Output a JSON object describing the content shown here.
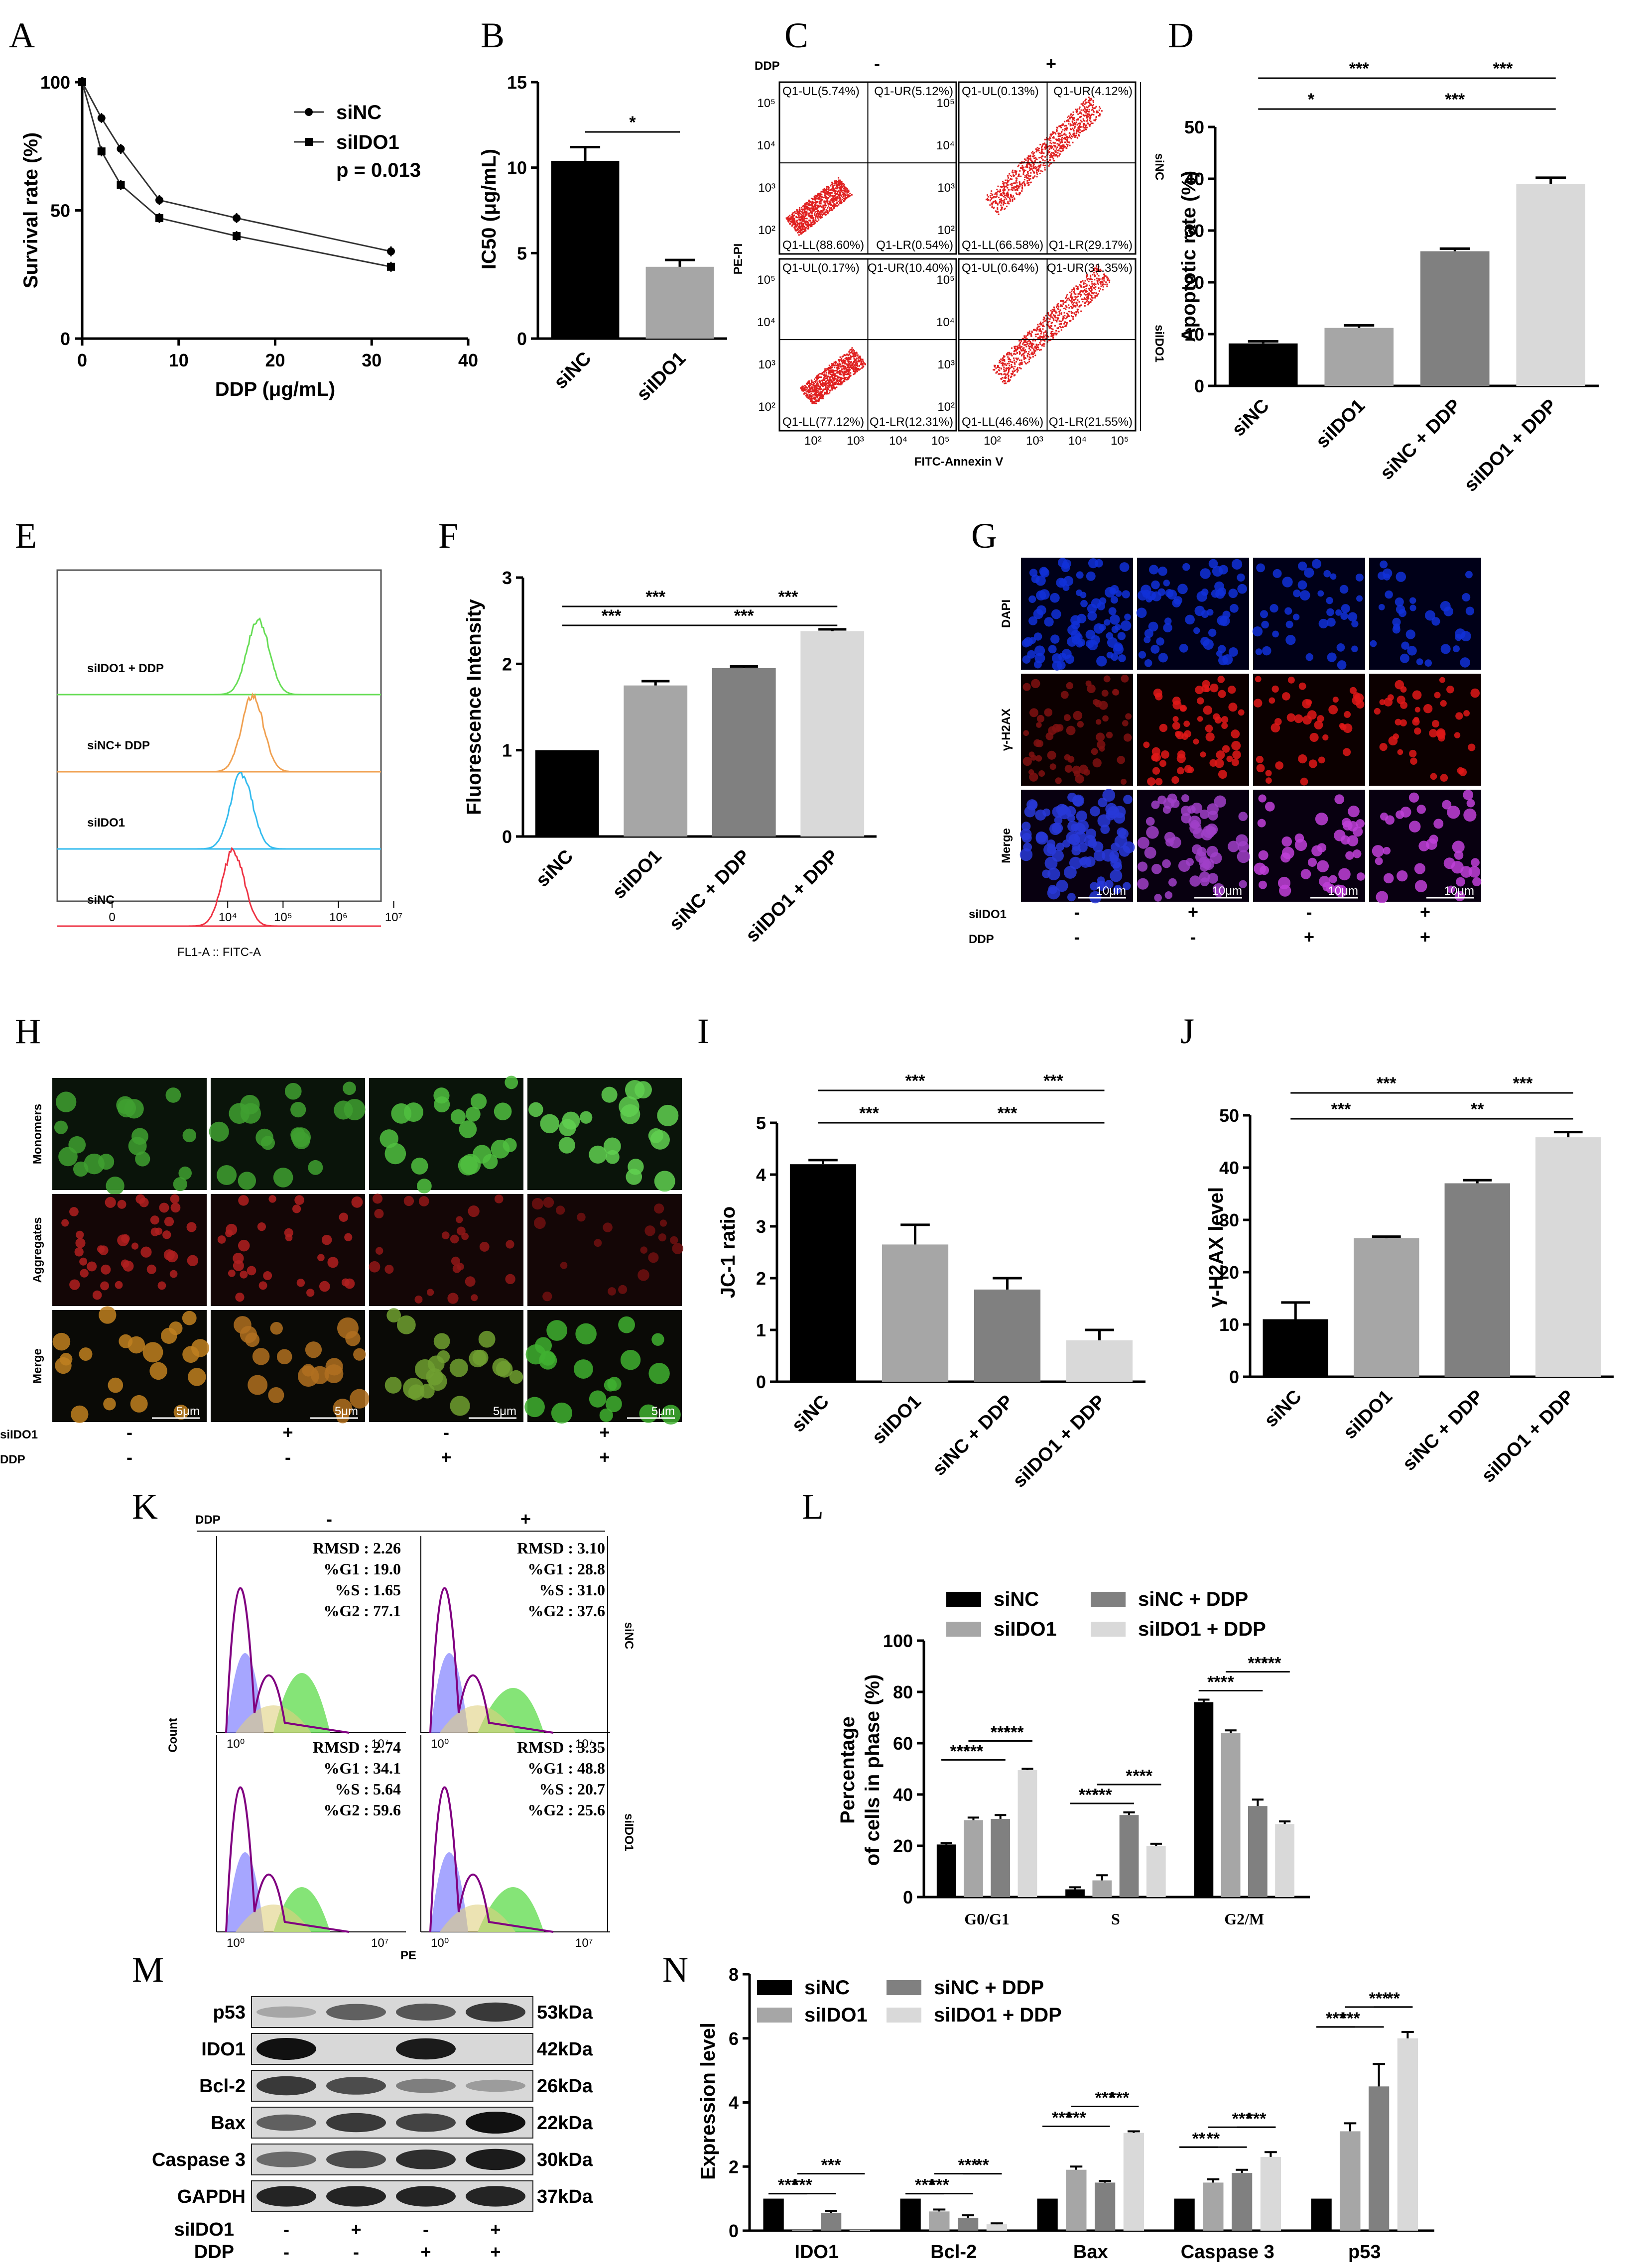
{
  "panel_letters": [
    "A",
    "B",
    "C",
    "D",
    "E",
    "F",
    "G",
    "H",
    "I",
    "J",
    "K",
    "L",
    "M",
    "N"
  ],
  "colors": {
    "black": "#000000",
    "darkgray": "#808080",
    "midgray": "#a6a6a6",
    "lightgray": "#d9d9d9",
    "flow_red": "#e02020",
    "hist_green": "#66dd55",
    "hist_orange": "#f0a050",
    "hist_blue": "#33bbee",
    "hist_red": "#ee3344",
    "dapi": "#1030d8",
    "h2ax": "#e01818",
    "merge": "#c040d8",
    "jc_green": "#40a030",
    "jc_red": "#b02020"
  },
  "chart_data": [
    {
      "panel": "A",
      "type": "line",
      "xlabel": "DDP (μg/mL)",
      "ylabel": "Survival rate (%)",
      "xlim": [
        0,
        40
      ],
      "ylim": [
        0,
        100
      ],
      "xticks": [
        "0",
        "10",
        "20",
        "30",
        "40"
      ],
      "yticks": [
        "0",
        "50",
        "100"
      ],
      "annotation": "p = 0.013",
      "x": [
        0,
        2,
        4,
        8,
        16,
        32
      ],
      "series": [
        {
          "name": "siNC",
          "marker": "circle",
          "values": [
            100,
            86,
            74,
            54,
            47,
            34
          ]
        },
        {
          "name": "siIDO1",
          "marker": "square",
          "values": [
            100,
            73,
            60,
            47,
            40,
            28
          ]
        }
      ]
    },
    {
      "panel": "B",
      "type": "bar",
      "ylabel": "IC50 (μg/mL)",
      "ylim": [
        0,
        15
      ],
      "yticks": [
        "0",
        "5",
        "10",
        "15"
      ],
      "categories": [
        "siNC",
        "siIDO1"
      ],
      "values": [
        10.4,
        4.2
      ],
      "errors": [
        0.8,
        0.4
      ],
      "significance": [
        {
          "from": 0,
          "to": 1,
          "label": "*"
        }
      ]
    },
    {
      "panel": "C",
      "type": "scatter",
      "top_label": "DDP",
      "columns": [
        "-",
        "+"
      ],
      "rows": [
        "siNC",
        "siIDO1"
      ],
      "xlabel": "FITC-Annexin V",
      "ylabel": "PE-PI",
      "xticks": [
        "10²",
        "10³",
        "10⁴",
        "10⁵"
      ],
      "yticks": [
        "10²",
        "10³",
        "10⁴",
        "10⁵"
      ],
      "quadrants": [
        {
          "UL": "Q1-UL(5.74%)",
          "UR": "Q1-UR(5.12%)",
          "LL": "Q1-LL(88.60%)",
          "LR": "Q1-LR(0.54%)"
        },
        {
          "UL": "Q1-UL(0.13%)",
          "UR": "Q1-UR(4.12%)",
          "LL": "Q1-LL(66.58%)",
          "LR": "Q1-LR(29.17%)"
        },
        {
          "UL": "Q1-UL(0.17%)",
          "UR": "Q1-UR(10.40%)",
          "LL": "Q1-LL(77.12%)",
          "LR": "Q1-LR(12.31%)"
        },
        {
          "UL": "Q1-UL(0.64%)",
          "UR": "Q1-UR(31.35%)",
          "LL": "Q1-LL(46.46%)",
          "LR": "Q1-LR(21.55%)"
        }
      ]
    },
    {
      "panel": "D",
      "type": "bar",
      "ylabel": "Apoptotic rate (%)",
      "ylim": [
        0,
        50
      ],
      "yticks": [
        "0",
        "10",
        "20",
        "30",
        "40",
        "50"
      ],
      "categories": [
        "siNC",
        "siIDO1",
        "siNC + DDP",
        "siIDO1 + DDP"
      ],
      "values": [
        8.2,
        11.2,
        26.0,
        39.0
      ],
      "errors": [
        0.4,
        0.5,
        0.5,
        1.2
      ],
      "significance": [
        {
          "from": 0,
          "to": 2,
          "label": "***",
          "level": 2
        },
        {
          "from": 2,
          "to": 3,
          "label": "***",
          "level": 2
        },
        {
          "from": 0,
          "to": 1,
          "label": "*",
          "level": 1
        },
        {
          "from": 1,
          "to": 3,
          "label": "***",
          "level": 1
        }
      ]
    },
    {
      "panel": "E",
      "type": "area",
      "xlabel": "FL1-A :: FITC-A",
      "xticks": [
        "0",
        "10⁴",
        "10⁵",
        "10⁶",
        "10⁷"
      ],
      "series": [
        {
          "name": "siIDO1 + DDP",
          "color": "#66dd55",
          "peak": 5.05
        },
        {
          "name": "siNC+ DDP",
          "color": "#f0a050",
          "peak": 4.95
        },
        {
          "name": "siIDO1",
          "color": "#33bbee",
          "peak": 4.75
        },
        {
          "name": "siNC",
          "color": "#ee3344",
          "peak": 4.6
        }
      ]
    },
    {
      "panel": "F",
      "type": "bar",
      "ylabel": "Fluorescence Intensity",
      "ylim": [
        0,
        3
      ],
      "yticks": [
        "0",
        "1",
        "2",
        "3"
      ],
      "categories": [
        "siNC",
        "siIDO1",
        "siNC + DDP",
        "siIDO1 + DDP"
      ],
      "values": [
        1.0,
        1.75,
        1.95,
        2.38
      ],
      "errors": [
        0,
        0.05,
        0.02,
        0.02
      ],
      "significance": [
        {
          "from": 0,
          "to": 2,
          "label": "***",
          "level": 2
        },
        {
          "from": 2,
          "to": 3,
          "label": "***",
          "level": 2
        },
        {
          "from": 0,
          "to": 1,
          "label": "***",
          "level": 1
        },
        {
          "from": 1,
          "to": 3,
          "label": "***",
          "level": 1
        }
      ]
    },
    {
      "panel": "G",
      "type": "table",
      "rows": [
        "Monomers",
        "Aggregates",
        "Merge"
      ],
      "scale": "5μm",
      "conditions": {
        "siIDO1": [
          "-",
          "+",
          "-",
          "+"
        ],
        "DDP": [
          "-",
          "-",
          "+",
          "+"
        ]
      }
    },
    {
      "panel": "H",
      "type": "bar",
      "ylabel": "JC-1 ratio",
      "ylim": [
        0,
        5
      ],
      "yticks": [
        "0",
        "1",
        "2",
        "3",
        "4",
        "5"
      ],
      "categories": [
        "siNC",
        "siIDO1",
        "siNC + DDP",
        "siIDO1 + DDP"
      ],
      "values": [
        4.2,
        2.65,
        1.78,
        0.8
      ],
      "errors": [
        0.08,
        0.38,
        0.22,
        0.2
      ],
      "significance": [
        {
          "from": 0,
          "to": 2,
          "label": "***",
          "level": 2
        },
        {
          "from": 2,
          "to": 3,
          "label": "***",
          "level": 2
        },
        {
          "from": 0,
          "to": 1,
          "label": "***",
          "level": 1
        },
        {
          "from": 1,
          "to": 3,
          "label": "***",
          "level": 1
        }
      ]
    },
    {
      "panel": "I",
      "type": "table",
      "rows": [
        "DAPI",
        "γ-H2AX",
        "Merge"
      ],
      "scale": "10μm",
      "conditions": {
        "siIDO1": [
          "-",
          "+",
          "-",
          "+"
        ],
        "DDP": [
          "-",
          "-",
          "+",
          "+"
        ]
      }
    },
    {
      "panel": "J",
      "type": "bar",
      "ylabel": "γ-H2AX level",
      "ylim": [
        0,
        50
      ],
      "yticks": [
        "0",
        "10",
        "20",
        "30",
        "40",
        "50"
      ],
      "categories": [
        "siNC",
        "siIDO1",
        "siNC + DDP",
        "siIDO1 + DDP"
      ],
      "values": [
        11.0,
        26.5,
        37.0,
        45.8
      ],
      "errors": [
        3.2,
        0.3,
        0.6,
        1.0
      ],
      "significance": [
        {
          "from": 0,
          "to": 2,
          "label": "***",
          "level": 2
        },
        {
          "from": 2,
          "to": 3,
          "label": "***",
          "level": 2
        },
        {
          "from": 0,
          "to": 1,
          "label": "***",
          "level": 1
        },
        {
          "from": 1,
          "to": 3,
          "label": "**",
          "level": 1
        }
      ]
    },
    {
      "panel": "K",
      "type": "area",
      "top_label": "DDP",
      "columns": [
        "-",
        "+"
      ],
      "rows": [
        "siNC",
        "siIDO1"
      ],
      "xlabel": "PE",
      "ylabel": "Count",
      "stats": [
        [
          "RMSD : 2.26",
          "%G1 : 19.0",
          "%S : 1.65",
          "%G2 : 77.1"
        ],
        [
          "RMSD : 3.10",
          "%G1 : 28.8",
          "%S : 31.0",
          "%G2 : 37.6"
        ],
        [
          "RMSD :  2.74",
          "%G1 : 34.1",
          "%S : 5.64",
          "%G2 : 59.6"
        ],
        [
          "RMSD : 3.35",
          "%G1 : 48.8",
          "%S : 20.7",
          "%G2 : 25.6"
        ]
      ]
    },
    {
      "panel": "L",
      "type": "bar",
      "ylabel": "Percentage of cells in phase (%)",
      "ylim": [
        0,
        100
      ],
      "yticks": [
        "0",
        "20",
        "40",
        "60",
        "80",
        "100"
      ],
      "categories": [
        "G0/G1",
        "S",
        "G2/M"
      ],
      "series": [
        {
          "name": "siNC",
          "values": [
            20.5,
            3.0,
            76.0
          ],
          "errors": [
            0.5,
            0.8,
            1.0
          ]
        },
        {
          "name": "siIDO1",
          "values": [
            30.0,
            6.5,
            64.0
          ],
          "errors": [
            1.0,
            2.0,
            1.0
          ]
        },
        {
          "name": "siNC + DDP",
          "values": [
            30.5,
            32.0,
            35.5
          ],
          "errors": [
            1.5,
            1.0,
            2.5
          ]
        },
        {
          "name": "siIDO1 + DDP",
          "values": [
            49.5,
            20.0,
            28.5
          ],
          "errors": [
            0.5,
            0.8,
            1.0
          ]
        }
      ],
      "significance": [
        [
          "***",
          "***",
          "***",
          "***"
        ],
        [
          "***",
          "*",
          "***",
          "***"
        ],
        [
          "***",
          "***",
          "*",
          "***"
        ]
      ]
    },
    {
      "panel": "M",
      "type": "table",
      "rows": [
        {
          "protein": "p53",
          "size": "53kDa"
        },
        {
          "protein": "IDO1",
          "size": "42kDa"
        },
        {
          "protein": "Bcl-2",
          "size": "26kDa"
        },
        {
          "protein": "Bax",
          "size": "22kDa"
        },
        {
          "protein": "Caspase 3",
          "size": "30kDa"
        },
        {
          "protein": "GAPDH",
          "size": "37kDa"
        }
      ],
      "conditions": {
        "siIDO1": [
          "-",
          "+",
          "-",
          "+"
        ],
        "DDP": [
          "-",
          "-",
          "+",
          "+"
        ]
      }
    },
    {
      "panel": "N",
      "type": "bar",
      "ylabel": "Expression level",
      "ylim": [
        0,
        8
      ],
      "yticks": [
        "0",
        "2",
        "4",
        "6",
        "8"
      ],
      "categories": [
        "IDO1",
        "Bcl-2",
        "Bax",
        "Caspase 3",
        "p53"
      ],
      "series": [
        {
          "name": "siNC",
          "values": [
            1.0,
            1.0,
            1.0,
            1.0,
            1.0
          ],
          "errors": [
            0,
            0,
            0,
            0,
            0
          ]
        },
        {
          "name": "siIDO1",
          "values": [
            0.02,
            0.6,
            1.9,
            1.5,
            3.1
          ],
          "errors": [
            0,
            0.06,
            0.1,
            0.1,
            0.25
          ]
        },
        {
          "name": "siNC + DDP",
          "values": [
            0.55,
            0.4,
            1.5,
            1.8,
            4.5
          ],
          "errors": [
            0.06,
            0.08,
            0.05,
            0.1,
            0.7
          ]
        },
        {
          "name": "siIDO1 + DDP",
          "values": [
            0.02,
            0.2,
            3.05,
            2.3,
            6.0
          ],
          "errors": [
            0,
            0.03,
            0.05,
            0.15,
            0.2
          ]
        }
      ],
      "significance": [
        [
          "***",
          "***",
          "***"
        ],
        [
          "***",
          "***",
          "***",
          "**"
        ],
        [
          "***",
          "***",
          "***",
          "***"
        ],
        [
          "**",
          "***",
          "**",
          "***"
        ],
        [
          "***",
          "***",
          "***",
          "**"
        ]
      ]
    }
  ]
}
